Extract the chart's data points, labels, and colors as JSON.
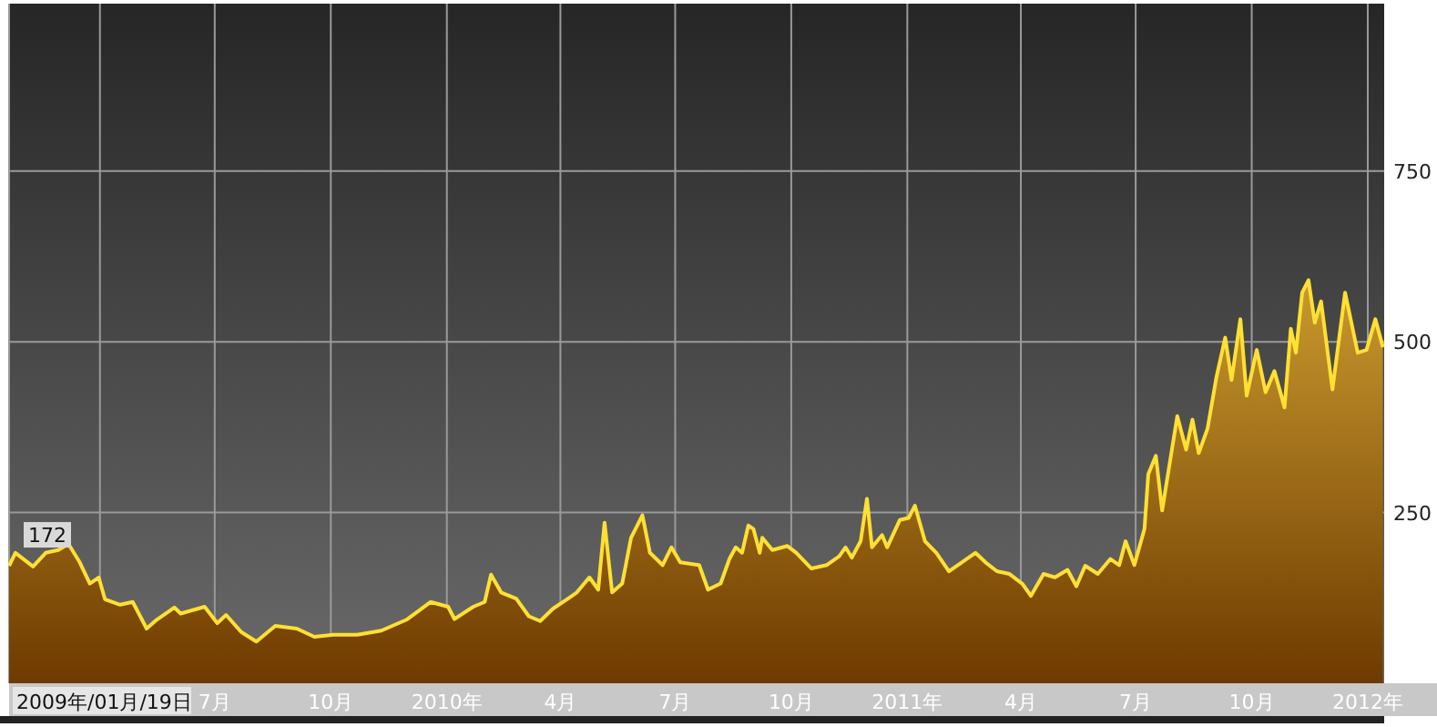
{
  "chart_data": {
    "type": "area",
    "color": "#ffe033",
    "x": [
      "2009-01-19",
      "2009-01-24",
      "2009-02-07",
      "2009-02-17",
      "2009-02-27",
      "2009-03-07",
      "2009-03-16",
      "2009-03-24",
      "2009-03-31",
      "2009-04-05",
      "2009-04-17",
      "2009-04-27",
      "2009-05-08",
      "2009-05-16",
      "2009-05-30",
      "2009-06-04",
      "2009-06-23",
      "2009-07-03",
      "2009-07-10",
      "2009-07-22",
      "2009-08-03",
      "2009-08-18",
      "2009-09-04",
      "2009-09-18",
      "2009-10-03",
      "2009-10-22",
      "2009-11-10",
      "2009-11-30",
      "2009-12-19",
      "2010-01-02",
      "2010-01-07",
      "2010-01-22",
      "2010-01-31",
      "2010-02-05",
      "2010-02-13",
      "2010-02-25",
      "2010-03-07",
      "2010-03-16",
      "2010-03-26",
      "2010-04-07",
      "2010-04-14",
      "2010-04-24",
      "2010-05-01",
      "2010-05-06",
      "2010-05-12",
      "2010-05-20",
      "2010-05-27",
      "2010-06-05",
      "2010-06-11",
      "2010-06-21",
      "2010-06-28",
      "2010-07-05",
      "2010-07-20",
      "2010-07-27",
      "2010-08-06",
      "2010-08-13",
      "2010-08-18",
      "2010-08-23",
      "2010-08-28",
      "2010-09-01",
      "2010-09-06",
      "2010-09-08",
      "2010-09-16",
      "2010-09-28",
      "2010-10-05",
      "2010-10-17",
      "2010-10-29",
      "2010-11-08",
      "2010-11-13",
      "2010-11-18",
      "2010-11-25",
      "2010-11-30",
      "2010-12-04",
      "2010-12-12",
      "2010-12-16",
      "2010-12-26",
      "2011-01-02",
      "2011-01-07",
      "2011-01-15",
      "2011-01-24",
      "2011-02-03",
      "2011-02-17",
      "2011-02-24",
      "2011-03-04",
      "2011-03-13",
      "2011-03-23",
      "2011-04-02",
      "2011-04-09",
      "2011-04-19",
      "2011-04-28",
      "2011-05-08",
      "2011-05-15",
      "2011-05-22",
      "2011-06-01",
      "2011-06-11",
      "2011-06-18",
      "2011-06-23",
      "2011-06-30",
      "2011-07-08",
      "2011-07-11",
      "2011-07-17",
      "2011-07-22",
      "2011-08-03",
      "2011-08-10",
      "2011-08-15",
      "2011-08-20",
      "2011-08-27",
      "2011-09-03",
      "2011-09-10",
      "2011-09-15",
      "2011-09-22",
      "2011-09-27",
      "2011-10-05",
      "2011-10-12",
      "2011-10-19",
      "2011-10-27",
      "2011-11-01",
      "2011-11-05",
      "2011-11-10",
      "2011-11-15",
      "2011-11-20",
      "2011-11-25",
      "2011-12-04",
      "2011-12-14",
      "2011-12-24",
      "2011-12-31",
      "2012-01-07",
      "2012-01-13"
    ],
    "values": [
      172,
      191,
      171,
      191,
      195,
      204,
      177,
      146,
      155,
      123,
      115,
      119,
      80,
      93,
      111,
      102,
      112,
      88,
      100,
      75,
      61,
      84,
      80,
      68,
      71,
      71,
      77,
      93,
      119,
      112,
      94,
      112,
      119,
      159,
      133,
      124,
      98,
      91,
      109,
      124,
      133,
      155,
      137,
      235,
      133,
      146,
      213,
      246,
      191,
      173,
      199,
      177,
      173,
      137,
      146,
      182,
      199,
      191,
      231,
      226,
      191,
      213,
      195,
      201,
      191,
      168,
      173,
      186,
      199,
      184,
      208,
      270,
      199,
      217,
      199,
      239,
      242,
      260,
      208,
      191,
      164,
      182,
      191,
      177,
      164,
      160,
      146,
      128,
      160,
      155,
      166,
      142,
      172,
      160,
      182,
      173,
      208,
      173,
      226,
      306,
      333,
      253,
      391,
      342,
      386,
      337,
      373,
      448,
      506,
      444,
      533,
      421,
      488,
      426,
      457,
      404,
      519,
      484,
      572,
      590,
      528,
      559,
      430,
      572,
      484,
      488,
      533,
      492
    ],
    "xlim": [
      "2009-01-19",
      "2012-01-14"
    ],
    "ylim": [
      0,
      995
    ],
    "yticks": [
      250,
      500,
      750
    ],
    "xticks": [
      {
        "value": "2009-01-19",
        "label": "2009年/01月/19日"
      },
      {
        "value": "2009-04-01",
        "label": null
      },
      {
        "value": "2009-07-01",
        "label": "7月"
      },
      {
        "value": "2009-10-01",
        "label": "10月"
      },
      {
        "value": "2010-01-01",
        "label": "2010年"
      },
      {
        "value": "2010-04-01",
        "label": "4月"
      },
      {
        "value": "2010-07-01",
        "label": "7月"
      },
      {
        "value": "2010-10-01",
        "label": "10月"
      },
      {
        "value": "2011-01-01",
        "label": "2011年"
      },
      {
        "value": "2011-04-01",
        "label": "4月"
      },
      {
        "value": "2011-07-01",
        "label": "7月"
      },
      {
        "value": "2011-10-01",
        "label": "10月"
      },
      {
        "value": "2012-01-01",
        "label": "2012年"
      }
    ],
    "grid": true,
    "annotations": [
      {
        "text": "172",
        "x": "2009-01-19",
        "y": 172
      }
    ]
  }
}
